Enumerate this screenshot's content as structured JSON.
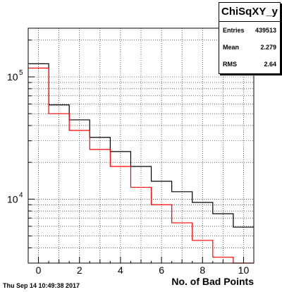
{
  "stats": {
    "title": "ChiSqXY_y",
    "rows": [
      {
        "label": "Entries",
        "value": "439513"
      },
      {
        "label": "Mean",
        "value": "2.279"
      },
      {
        "label": "RMS",
        "value": "2.64"
      }
    ]
  },
  "timestamp": "Thu Sep 14 10:49:38 2017",
  "chart_data": {
    "type": "line",
    "title": "ChiSqXY_y",
    "xlabel": "No. of Bad Points",
    "ylabel": "",
    "log_y": true,
    "grid": true,
    "xlim": [
      -0.5,
      10.5
    ],
    "ylim": [
      3000,
      250000
    ],
    "x_ticks": [
      0,
      2,
      4,
      6,
      8,
      10
    ],
    "y_ticks": [
      {
        "value": 10000,
        "label": "10",
        "exp": "4"
      },
      {
        "value": 100000,
        "label": "10",
        "exp": "5"
      }
    ],
    "bin_edges": [
      -0.5,
      0.5,
      1.5,
      2.5,
      3.5,
      4.5,
      5.5,
      6.5,
      7.5,
      8.5,
      9.5,
      10.5
    ],
    "series": [
      {
        "color": "#000000",
        "values": [
          128000,
          59000,
          44500,
          32000,
          24500,
          18500,
          14000,
          11500,
          9400,
          7600,
          5900
        ]
      },
      {
        "color": "#ff0000",
        "values": [
          118000,
          50000,
          36500,
          25500,
          18500,
          12500,
          9000,
          6400,
          4600,
          3350,
          2950
        ]
      }
    ]
  }
}
